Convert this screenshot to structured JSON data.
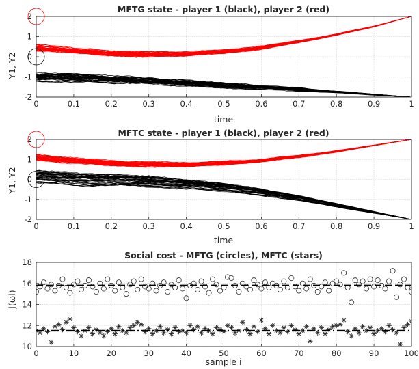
{
  "chart_data": [
    {
      "type": "line",
      "title": "MFTG state - player 1 (black), player 2 (red)",
      "xlabel": "time",
      "ylabel": "Y1, Y2",
      "xlim": [
        0,
        1
      ],
      "ylim": [
        -2,
        2
      ],
      "xticks": [
        "0",
        "0.1",
        "0.2",
        "0.3",
        "0.4",
        "0.5",
        "0.6",
        "0.7",
        "0.8",
        "0.9",
        "1"
      ],
      "yticks": [
        "-2",
        "-1",
        "0",
        "1",
        "2"
      ],
      "grid": true,
      "series": [
        {
          "color": "#ff0000",
          "x": [
            0,
            0.1,
            0.2,
            0.3,
            0.4,
            0.5,
            0.6,
            0.7,
            0.8,
            0.9,
            1
          ],
          "y": [
            0.45,
            0.3,
            0.18,
            0.12,
            0.15,
            0.25,
            0.45,
            0.75,
            1.1,
            1.5,
            2.0
          ],
          "band": 0.12,
          "count": 40
        },
        {
          "color": "#000000",
          "x": [
            0,
            0.1,
            0.2,
            0.3,
            0.4,
            0.5,
            0.6,
            0.7,
            0.8,
            0.9,
            1
          ],
          "y": [
            -1.0,
            -1.05,
            -1.12,
            -1.2,
            -1.3,
            -1.42,
            -1.52,
            -1.62,
            -1.75,
            -1.88,
            -2.0
          ],
          "band": 0.17,
          "count": 40
        }
      ],
      "markers": [
        {
          "x": 0,
          "y": 2,
          "color": "#ff0000"
        },
        {
          "x": 0,
          "y": 0,
          "color": "#000000"
        }
      ]
    },
    {
      "type": "line",
      "title": "MFTC state - player 1 (black), player 2 (red)",
      "xlabel": "time",
      "ylabel": "Y1, Y2",
      "xlim": [
        0,
        1
      ],
      "ylim": [
        -2,
        2
      ],
      "xticks": [
        "0",
        "0.1",
        "0.2",
        "0.3",
        "0.4",
        "0.5",
        "0.6",
        "0.7",
        "0.8",
        "0.9",
        "1"
      ],
      "yticks": [
        "-2",
        "-1",
        "0",
        "1",
        "2"
      ],
      "grid": true,
      "series": [
        {
          "color": "#ff0000",
          "x": [
            0,
            0.1,
            0.2,
            0.3,
            0.4,
            0.5,
            0.6,
            0.7,
            0.8,
            0.9,
            1
          ],
          "y": [
            1.1,
            0.95,
            0.82,
            0.75,
            0.75,
            0.82,
            0.95,
            1.15,
            1.4,
            1.7,
            2.0
          ],
          "band": 0.12,
          "count": 40
        },
        {
          "color": "#000000",
          "x": [
            0,
            0.1,
            0.2,
            0.3,
            0.4,
            0.5,
            0.6,
            0.7,
            0.8,
            0.9,
            1
          ],
          "y": [
            0.1,
            0.0,
            -0.05,
            -0.12,
            -0.25,
            -0.42,
            -0.65,
            -0.95,
            -1.3,
            -1.65,
            -2.0
          ],
          "band": 0.3,
          "count": 40
        }
      ],
      "markers": [
        {
          "x": 0,
          "y": 2,
          "color": "#ff0000"
        },
        {
          "x": 0,
          "y": 0,
          "color": "#000000"
        }
      ]
    },
    {
      "type": "scatter",
      "title": "Social cost - MFTG (circles), MFTC (stars)",
      "xlabel": "sample i",
      "ylabel": "j(ωi)",
      "xlim": [
        0,
        100
      ],
      "ylim": [
        10,
        18
      ],
      "xticks": [
        "0",
        "10",
        "20",
        "30",
        "40",
        "50",
        "60",
        "70",
        "80",
        "90",
        "100"
      ],
      "yticks": [
        "10",
        "12",
        "14",
        "16",
        "18"
      ],
      "grid": true,
      "means": [
        {
          "name": "MFTG mean",
          "value": 15.8,
          "style": "dashed"
        },
        {
          "name": "MFTC mean",
          "value": 11.5,
          "style": "dashdot"
        }
      ],
      "series": [
        {
          "marker": "circle",
          "values": [
            15.2,
            15.7,
            16.1,
            15.5,
            15.9,
            15.3,
            15.8,
            16.4,
            15.6,
            15.1,
            15.9,
            16.2,
            15.4,
            15.8,
            16.3,
            15.7,
            15.2,
            16.0,
            15.5,
            16.4,
            15.8,
            15.3,
            16.1,
            15.6,
            15.0,
            15.9,
            16.2,
            15.4,
            16.4,
            15.7,
            15.5,
            16.0,
            15.3,
            15.8,
            16.1,
            15.2,
            15.9,
            15.6,
            16.3,
            15.5,
            14.6,
            15.8,
            16.0,
            15.4,
            16.2,
            15.7,
            15.1,
            16.4,
            15.9,
            15.3,
            15.6,
            16.6,
            16.5,
            15.8,
            15.2,
            16.0,
            15.7,
            15.4,
            16.3,
            15.9,
            15.5,
            16.1,
            15.6,
            16.0,
            15.8,
            15.4,
            16.2,
            15.6,
            16.5,
            15.7,
            15.3,
            16.0,
            15.5,
            16.4,
            15.8,
            15.2,
            15.7,
            16.1,
            15.3,
            16.0,
            16.2,
            15.9,
            17.0,
            15.6,
            14.2,
            16.3,
            15.9,
            16.2,
            15.5,
            16.4,
            15.7,
            16.3,
            15.8,
            15.5,
            16.2,
            17.2,
            14.7,
            15.9,
            16.4,
            15.6,
            15.2
          ]
        },
        {
          "marker": "star",
          "values": [
            11.5,
            11.3,
            11.7,
            11.4,
            10.4,
            11.9,
            12.1,
            11.6,
            12.3,
            12.6,
            11.8,
            11.4,
            11.0,
            11.5,
            11.8,
            11.2,
            11.6,
            11.3,
            11.0,
            11.4,
            11.7,
            11.2,
            11.9,
            11.5,
            11.3,
            11.8,
            12.0,
            12.3,
            12.1,
            11.4,
            11.7,
            11.2,
            11.5,
            11.9,
            11.3,
            11.6,
            11.2,
            11.8,
            11.4,
            11.5,
            11.3,
            12.0,
            11.6,
            11.9,
            11.3,
            11.7,
            11.5,
            11.2,
            11.8,
            11.6,
            11.4,
            12.0,
            11.8,
            11.3,
            11.5,
            12.3,
            11.6,
            11.2,
            11.9,
            11.4,
            12.5,
            11.7,
            11.2,
            12.0,
            11.5,
            11.3,
            11.8,
            11.4,
            12.0,
            11.6,
            11.2,
            11.5,
            11.9,
            10.5,
            11.7,
            11.3,
            11.8,
            11.2,
            11.6,
            11.9,
            12.0,
            12.1,
            12.5,
            11.4,
            11.0,
            11.7,
            11.3,
            11.9,
            11.5,
            11.8,
            11.2,
            11.5,
            11.7,
            11.4,
            12.0,
            11.6,
            11.3,
            10.2,
            11.8,
            12.1,
            12.4
          ]
        }
      ]
    }
  ]
}
